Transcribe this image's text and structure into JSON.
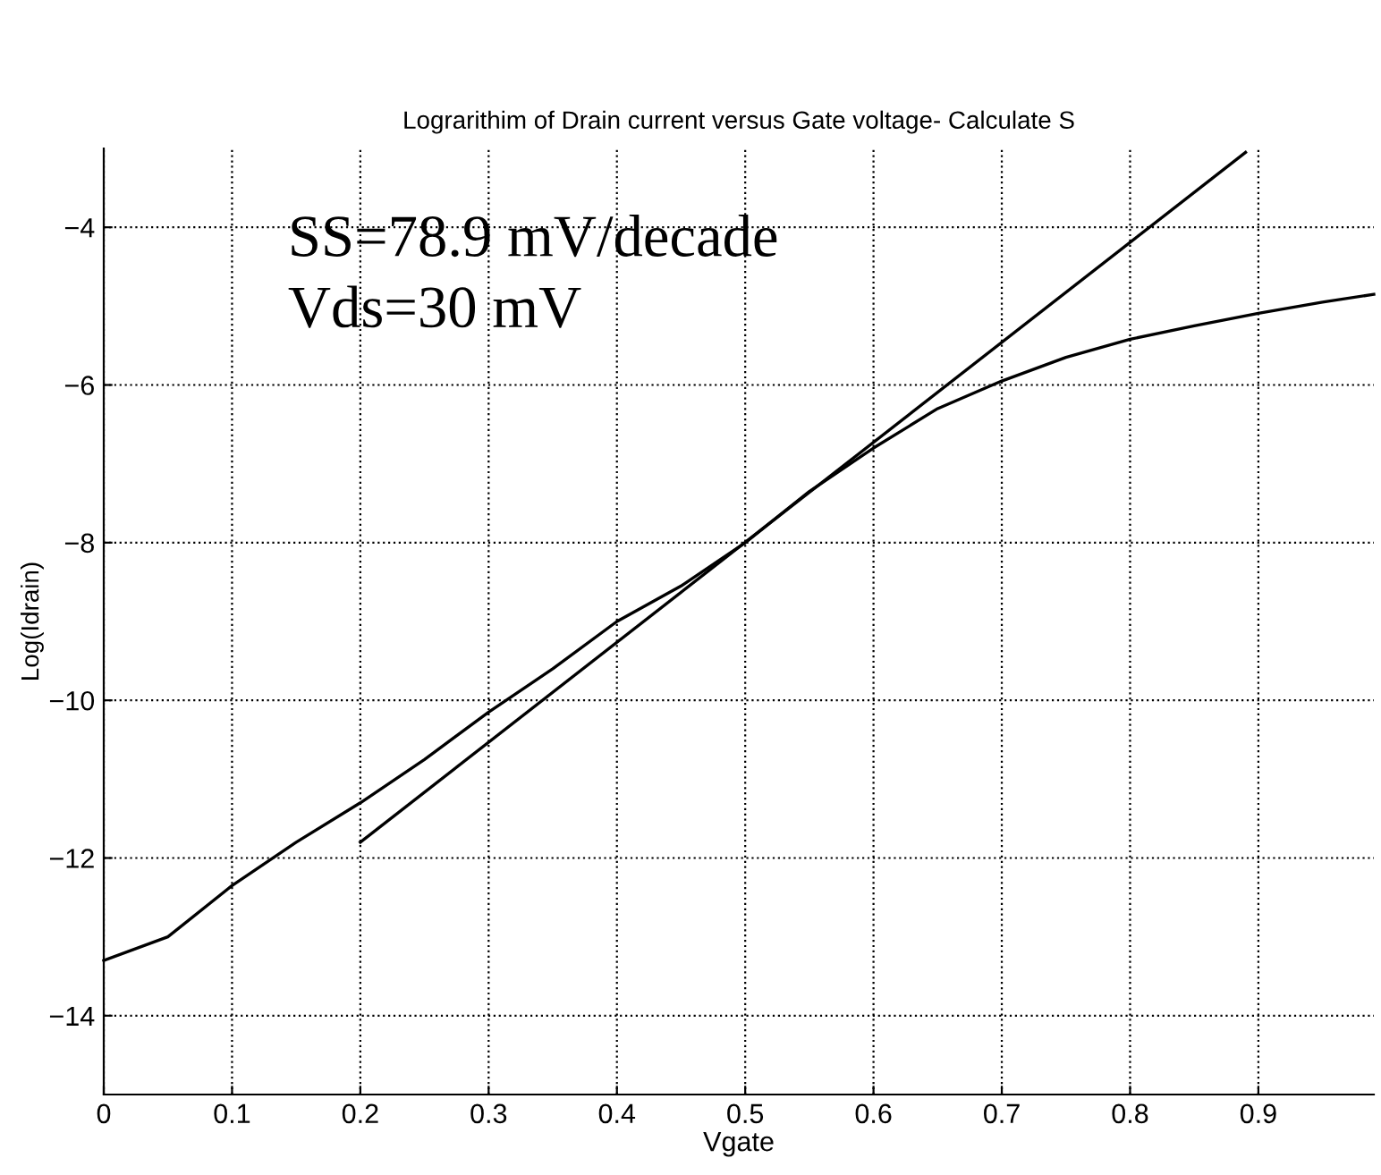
{
  "chart_data": {
    "type": "line",
    "title": "Lograrithim of Drain current versus Gate voltage- Calculate S",
    "xlabel": "Vgate",
    "ylabel": "Log(Idrain)",
    "series": [
      {
        "color": "#000000",
        "x": [
          0,
          0.05,
          0.1,
          0.15,
          0.2,
          0.25,
          0.3,
          0.35,
          0.4,
          0.45,
          0.5,
          0.55,
          0.6,
          0.65,
          0.7,
          0.75,
          0.8,
          0.85,
          0.9,
          0.95,
          0.99
        ],
        "values": [
          -13.3,
          -13.0,
          -12.35,
          -11.8,
          -11.3,
          -10.75,
          -10.15,
          -9.6,
          -9.0,
          -8.55,
          -8.0,
          -7.35,
          -6.8,
          -6.3,
          -5.95,
          -5.65,
          -5.42,
          -5.25,
          -5.09,
          -4.95,
          -4.85
        ]
      },
      {
        "color": "#000000",
        "x": [
          0.2,
          0.89
        ],
        "values": [
          -11.8,
          -3.05
        ]
      }
    ],
    "annotations": [
      "SS=78.9 mV/decade",
      "Vds=30 mV"
    ],
    "xlim": [
      0,
      0.99
    ],
    "ylim": [
      -15,
      -3
    ],
    "xticks": [
      0,
      0.1,
      0.2,
      0.3,
      0.4,
      0.5,
      0.6,
      0.7,
      0.8,
      0.9
    ],
    "yticks": [
      -14,
      -12,
      -10,
      -8,
      -6,
      -4
    ],
    "grid": true,
    "line_style": "solid",
    "marker": "none"
  }
}
